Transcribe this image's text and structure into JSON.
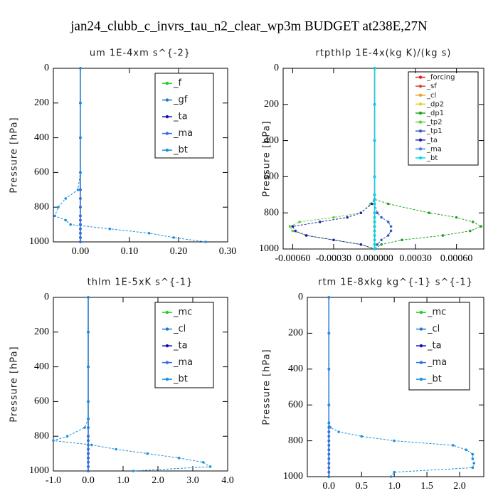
{
  "chart_data": [
    {
      "type": "line",
      "main_title": "jan24_clubb_c_invrs_tau_n2_clear_wp3m  BUDGET at238E,27N",
      "title": "um  1E-4xm s^{-2}",
      "ylabel": "Pressure [hPa]",
      "levels": [
        0,
        200,
        400,
        600,
        700,
        750,
        800,
        850,
        875,
        900,
        925,
        950,
        975,
        1000
      ],
      "ylim": [
        0,
        1000
      ],
      "y_inverted": true,
      "yticks": [
        0,
        200,
        400,
        600,
        800,
        1000
      ],
      "xlim": [
        -0.055,
        0.3
      ],
      "xticks": [
        {
          "value": 0,
          "label": "0.00"
        },
        {
          "value": 0.1,
          "label": "0.10"
        },
        {
          "value": 0.2,
          "label": "0.20"
        },
        {
          "value": 0.3,
          "label": "0.30"
        }
      ],
      "series": [
        {
          "name": "_f",
          "color": "#22cc22",
          "values": [
            0,
            0,
            0,
            0,
            0,
            0,
            0,
            0,
            0,
            0,
            0,
            0,
            0,
            0
          ]
        },
        {
          "name": "_gf",
          "color": "#1e78c8",
          "values": [
            0,
            0,
            0,
            0,
            0,
            0,
            0,
            0,
            0,
            0,
            0,
            0,
            0,
            0
          ]
        },
        {
          "name": "_ta",
          "color": "#1010b0",
          "values": [
            0,
            0,
            0,
            0,
            0,
            0,
            0,
            0,
            0,
            0,
            0,
            0,
            0,
            0
          ]
        },
        {
          "name": "_ma",
          "color": "#3070e0",
          "values": [
            0,
            0,
            0,
            0,
            0,
            0,
            0,
            0,
            0,
            0,
            0,
            0,
            0,
            0
          ]
        },
        {
          "name": "_bt",
          "color": "#1a90e0",
          "values": [
            0,
            0,
            0,
            0,
            -0.005,
            -0.03,
            -0.045,
            -0.052,
            -0.03,
            -0.02,
            0.06,
            0.14,
            0.19,
            0.255
          ]
        }
      ]
    },
    {
      "type": "line",
      "title": "rtpthlp  1E-4x(kg K)/(kg s)",
      "ylabel": "Pressure [hPa]",
      "levels": [
        0,
        200,
        400,
        600,
        700,
        725,
        750,
        800,
        825,
        850,
        875,
        900,
        925,
        950,
        975,
        1000
      ],
      "ylim": [
        0,
        1000
      ],
      "y_inverted": true,
      "yticks": [
        0,
        200,
        400,
        600,
        800,
        1000
      ],
      "xlim": [
        -0.00067,
        0.0008
      ],
      "xticks": [
        {
          "value": -0.0006,
          "label": "-0.00060"
        },
        {
          "value": -0.0003,
          "label": "-0.00030"
        },
        {
          "value": 0,
          "label": "0.000000"
        },
        {
          "value": 0.0003,
          "label": "0.00030"
        },
        {
          "value": 0.0006,
          "label": "0.00060"
        }
      ],
      "series": [
        {
          "name": "_forcing",
          "color": "#dd2020",
          "values": [
            0,
            0,
            0,
            0,
            0,
            0,
            0,
            0,
            0,
            0,
            0,
            0,
            0,
            0,
            0,
            0
          ]
        },
        {
          "name": "_sf",
          "color": "#e04040",
          "values": [
            0,
            0,
            0,
            0,
            0,
            0,
            0,
            0,
            0,
            0,
            0,
            0,
            0,
            0,
            0,
            0
          ]
        },
        {
          "name": "_cl",
          "color": "#f0a020",
          "values": [
            0,
            0,
            0,
            0,
            0,
            0,
            0,
            0,
            0,
            0,
            0,
            0,
            0,
            0,
            0,
            0
          ]
        },
        {
          "name": "_dp2",
          "color": "#e8d020",
          "values": [
            0,
            0,
            0,
            0,
            0,
            0,
            0,
            0,
            0,
            0,
            0,
            0,
            0,
            0,
            0,
            0
          ]
        },
        {
          "name": "_dp1",
          "color": "#20a020",
          "values": [
            0,
            0,
            0,
            0,
            0,
            0,
            0.0001,
            0.0004,
            0.0006,
            0.00072,
            0.00078,
            0.0007,
            0.0005,
            0.0002,
            5e-05,
            0
          ]
        },
        {
          "name": "_tp2",
          "color": "#60d040",
          "values": [
            0,
            0,
            0,
            0,
            0,
            0,
            -3e-05,
            -0.0001,
            -0.0003,
            -0.00055,
            -0.00062,
            -0.0006,
            -0.0005,
            -0.0003,
            -0.0001,
            0
          ]
        },
        {
          "name": "_tp1",
          "color": "#3060d0",
          "values": [
            0,
            0,
            0,
            0,
            0,
            0,
            0,
            2e-05,
            5e-05,
            0.0001,
            0.00012,
            0.00012,
            0.0001,
            5e-05,
            2e-05,
            0
          ]
        },
        {
          "name": "_ta",
          "color": "#2020b0",
          "values": [
            0,
            0,
            0,
            0,
            0,
            0,
            -2e-05,
            -0.0001,
            -0.0002,
            -0.0004,
            -0.0006,
            -0.00058,
            -0.0005,
            -0.0003,
            -0.0001,
            0
          ]
        },
        {
          "name": "_ma",
          "color": "#4080e0",
          "values": [
            0,
            0,
            0,
            0,
            0,
            0,
            0,
            0,
            0,
            0,
            0,
            0,
            0,
            0,
            0,
            0
          ]
        },
        {
          "name": "_bt",
          "color": "#00d8e8",
          "values": [
            0,
            0,
            0,
            0,
            0,
            0,
            0,
            0,
            0,
            0,
            0,
            0,
            0,
            0,
            0,
            0
          ]
        }
      ]
    },
    {
      "type": "line",
      "title": "thlm  1E-5xK s^{-1}",
      "ylabel": "Pressure [hPa]",
      "levels": [
        0,
        200,
        400,
        600,
        700,
        750,
        800,
        825,
        850,
        875,
        900,
        925,
        950,
        975,
        1000
      ],
      "ylim": [
        0,
        1000
      ],
      "y_inverted": true,
      "yticks": [
        0,
        200,
        400,
        600,
        800,
        1000
      ],
      "xlim": [
        -1,
        4
      ],
      "xticks": [
        {
          "value": -1,
          "label": "-1.0"
        },
        {
          "value": 0,
          "label": "0.0"
        },
        {
          "value": 1,
          "label": "1.0"
        },
        {
          "value": 2,
          "label": "2.0"
        },
        {
          "value": 3,
          "label": "3.0"
        },
        {
          "value": 4,
          "label": "4.0"
        }
      ],
      "series": [
        {
          "name": "_mc",
          "color": "#22cc22",
          "values": [
            0,
            0,
            0,
            0,
            0,
            0,
            0,
            0,
            0,
            0,
            0,
            0,
            0,
            0,
            0
          ]
        },
        {
          "name": "_cl",
          "color": "#1e78c8",
          "values": [
            0,
            0,
            0,
            0,
            0,
            0,
            0,
            0,
            0,
            0,
            0,
            0,
            0,
            0,
            0
          ]
        },
        {
          "name": "_ta",
          "color": "#1010b0",
          "values": [
            0,
            0,
            0,
            0,
            0,
            0,
            0,
            0,
            0,
            0,
            0,
            0,
            0,
            0,
            0
          ]
        },
        {
          "name": "_ma",
          "color": "#3070e0",
          "values": [
            0,
            0,
            0,
            0,
            0,
            0,
            0,
            0,
            0,
            0,
            0,
            0,
            0,
            0,
            0
          ]
        },
        {
          "name": "_bt",
          "color": "#1a90e0",
          "values": [
            0,
            0,
            0,
            0,
            0,
            -0.1,
            -0.6,
            -1,
            0.1,
            0.8,
            1.7,
            2.6,
            3.3,
            3.5,
            1.3
          ]
        }
      ]
    },
    {
      "type": "line",
      "title": "rtm  1E-8xkg kg^{-1} s^{-1}",
      "ylabel": "Pressure [hPa]",
      "levels": [
        0,
        200,
        400,
        600,
        700,
        725,
        750,
        775,
        800,
        825,
        850,
        875,
        900,
        925,
        950,
        975,
        1000
      ],
      "ylim": [
        0,
        1000
      ],
      "y_inverted": true,
      "yticks": [
        0,
        200,
        400,
        600,
        800,
        1000
      ],
      "xlim": [
        -0.33,
        2.37
      ],
      "xticks": [
        {
          "value": 0,
          "label": "0.0"
        },
        0.5,
        {
          "value": 1,
          "label": "1.0"
        },
        1.5,
        {
          "value": 2,
          "label": "2.0"
        }
      ],
      "series": [
        {
          "name": "_mc",
          "color": "#22cc22",
          "values": [
            0,
            0,
            0,
            0,
            0,
            0,
            0,
            0,
            0,
            0,
            0,
            0,
            0,
            0,
            0,
            0,
            0
          ]
        },
        {
          "name": "_cl",
          "color": "#1e78c8",
          "values": [
            0,
            0,
            0,
            0,
            0,
            0,
            0,
            0,
            0,
            0,
            0,
            0,
            0,
            0,
            0,
            0,
            0
          ]
        },
        {
          "name": "_ta",
          "color": "#1010b0",
          "values": [
            0,
            0,
            0,
            0,
            0,
            0,
            0,
            0,
            0,
            0,
            0,
            0,
            0,
            0,
            0,
            0,
            0
          ]
        },
        {
          "name": "_ma",
          "color": "#3070e0",
          "values": [
            0,
            0,
            0,
            0,
            0,
            0,
            0,
            0,
            0,
            0,
            0,
            0,
            0,
            0,
            0,
            0,
            0
          ]
        },
        {
          "name": "_bt",
          "color": "#1a90e0",
          "values": [
            0,
            0,
            0,
            0,
            0,
            0.02,
            0.15,
            0.5,
            1,
            1.9,
            2.1,
            2.2,
            2.2,
            2.22,
            2.2,
            1,
            0.95
          ]
        }
      ]
    }
  ]
}
